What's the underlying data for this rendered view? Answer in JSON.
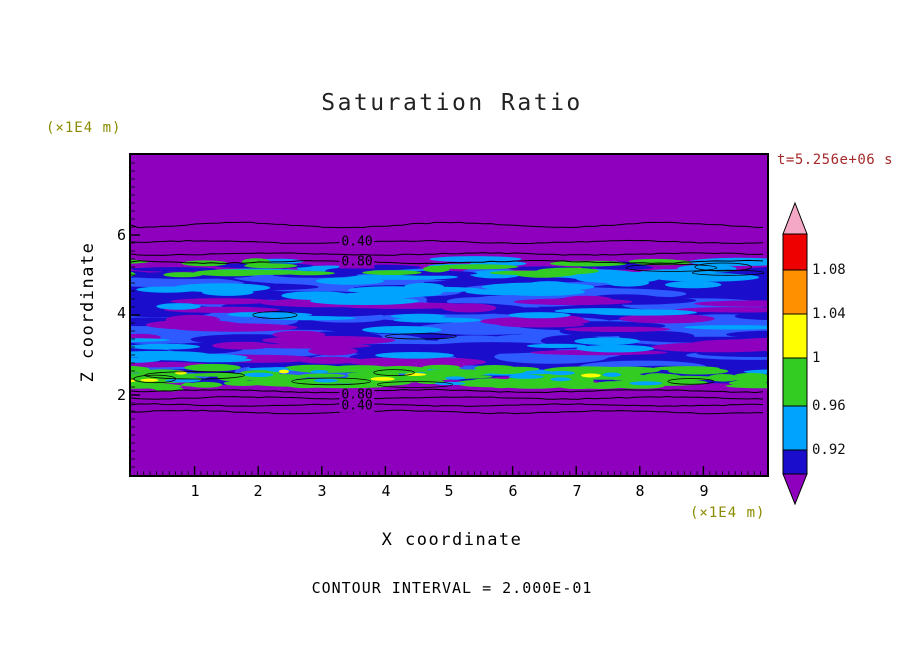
{
  "palette": {
    "purple": "#8E00BE",
    "navy": "#1A0ECC",
    "blue": "#2E5BFF",
    "cyan": "#00A4FF",
    "green": "#33CC22",
    "yellow": "#FFFF00",
    "orange": "#FF9000",
    "red": "#EE0000",
    "pink": "#F5A8C5",
    "contour_line": "#000000",
    "frame": "#000000",
    "units_text": "#8B8B00",
    "timestamp_text": "#A52A2A"
  },
  "header": {
    "title": "Saturation Ratio",
    "timestamp": "t=5.256e+06 s"
  },
  "axes": {
    "x": {
      "label": "X coordinate",
      "units": "(×1E4 m)",
      "ticks": [
        "1",
        "2",
        "3",
        "4",
        "5",
        "6",
        "7",
        "8",
        "9"
      ]
    },
    "z": {
      "label": "Z coordinate",
      "units": "(×1E4 m)",
      "ticks": [
        "6",
        "4",
        "2"
      ]
    }
  },
  "contour_labels": {
    "top": [
      "0.40",
      "0.80"
    ],
    "bottom": [
      "0.80",
      "0.40"
    ]
  },
  "colorbar": {
    "tick_labels": [
      "1.08",
      "1.04",
      "1",
      "0.96",
      "0.92"
    ]
  },
  "footer": {
    "contour_interval": "CONTOUR INTERVAL = 2.000E-01"
  },
  "chart_data": {
    "type": "heatmap",
    "title": "Saturation Ratio",
    "xlabel": "X coordinate (×1E4 m)",
    "ylabel": "Z coordinate (×1E4 m)",
    "xlim": [
      0,
      10
    ],
    "ylim": [
      0,
      8
    ],
    "x_ticks": [
      1,
      2,
      3,
      4,
      5,
      6,
      7,
      8,
      9
    ],
    "z_ticks": [
      2,
      4,
      6
    ],
    "time_label": "t=5.256e+06 s",
    "contour_interval": 0.2,
    "line_contour_levels_visible": [
      0.2,
      0.4,
      0.6,
      0.8
    ],
    "colorbar": {
      "levels": [
        0.92,
        0.96,
        1.0,
        1.04,
        1.08
      ],
      "colors_low_to_high": [
        "purple (below range)",
        "dark blue 0.88-0.92",
        "cyan 0.92-0.96",
        "green 0.96-1.00",
        "yellow 1.00-1.04",
        "orange 1.04-1.08",
        "red above 1.08",
        "pink (above range)"
      ],
      "orientation": "vertical-right",
      "end_arrows": true
    },
    "field_description": [
      {
        "z_range": [
          5.35,
          8.0
        ],
        "value": "saturation < 0.9; line contours 0.2,0.4,0.6,0.8 stacked between z=5.3 and z=6.3",
        "fill": "purple"
      },
      {
        "z_range": [
          4.8,
          5.35
        ],
        "value": "0.92-1.00",
        "fill": "cyan band with green streaks and dark-blue patches"
      },
      {
        "z_range": [
          2.4,
          4.8
        ],
        "value": "0.85-0.96 with drier streaks",
        "fill": "dark blue / blue / cyan mixture with purple streaks"
      },
      {
        "z_range": [
          2.05,
          2.45
        ],
        "value": "0.96-1.04 moist band with yellow specks",
        "fill": "green band across full width"
      },
      {
        "z_range": [
          0.0,
          2.0
        ],
        "value": "saturation < 0.9; line contours 0.8,0.6,0.4,0.2 stacked between z=1.5 and z=2.1",
        "fill": "purple"
      }
    ],
    "grid": false,
    "legend": "colorbar"
  }
}
